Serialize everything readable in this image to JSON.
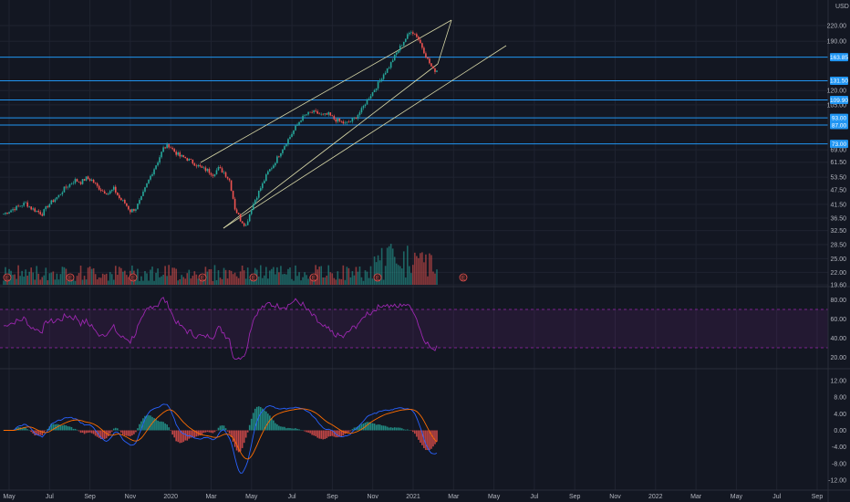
{
  "currency": "USD",
  "colors": {
    "background": "#131722",
    "grid": "#1f2330",
    "up": "#26a69a",
    "down": "#ef5350",
    "hline": "#2196f3",
    "trendline": "#d9d9a8",
    "rsi": "#9c27b0",
    "macd": "#2962ff",
    "signal": "#ff6d00"
  },
  "x_axis_labels": [
    "May",
    "Jul",
    "Sep",
    "Nov",
    "2020",
    "Mar",
    "May",
    "Jul",
    "Sep",
    "Nov",
    "2021",
    "Mar",
    "May",
    "Jul",
    "Sep",
    "Nov",
    "2022",
    "Mar",
    "May",
    "Jul",
    "Sep"
  ],
  "price_axis_labels": [
    "220.00",
    "190.00",
    "120.00",
    "105.00",
    "69.00",
    "61.50",
    "53.50",
    "47.50",
    "41.50",
    "36.50",
    "32.50",
    "28.50",
    "25.00",
    "22.00",
    "19.60"
  ],
  "price_badges": [
    "163.85",
    "131.50",
    "109.90",
    "93.00",
    "87.00",
    "73.00"
  ],
  "rsi_axis_labels": [
    "80.00",
    "60.00",
    "40.00",
    "20.00"
  ],
  "macd_axis_labels": [
    "12.00",
    "8.00",
    "4.00",
    "0.00",
    "-4.00",
    "-8.00",
    "-12.00"
  ],
  "earnings_marker": "E",
  "chart_data": {
    "type": "candlestick",
    "series": [
      {
        "name": "Price",
        "values": [
          38,
          39,
          40,
          41,
          42,
          40,
          39,
          38,
          41,
          43,
          45,
          48,
          50,
          52,
          51,
          53,
          52,
          49,
          47,
          46,
          48,
          44,
          42,
          39,
          40,
          44,
          50,
          56,
          62,
          70,
          72,
          68,
          65,
          64,
          62,
          60,
          58,
          57,
          55,
          58,
          56,
          52,
          40,
          36,
          34,
          40,
          45,
          50,
          56,
          60,
          66,
          72,
          78,
          85,
          92,
          96,
          98,
          97,
          95,
          96,
          92,
          90,
          88,
          90,
          94,
          100,
          110,
          118,
          128,
          140,
          150,
          165,
          180,
          195,
          210,
          200,
          180,
          160,
          145
        ]
      }
    ],
    "price_levels": [
      163.85,
      131.5,
      109.9,
      93,
      87,
      73
    ],
    "rsi": {
      "upper": 70,
      "lower": 30,
      "ylim": [
        10,
        90
      ]
    },
    "macd": {
      "ylim": [
        -14,
        14
      ]
    }
  }
}
